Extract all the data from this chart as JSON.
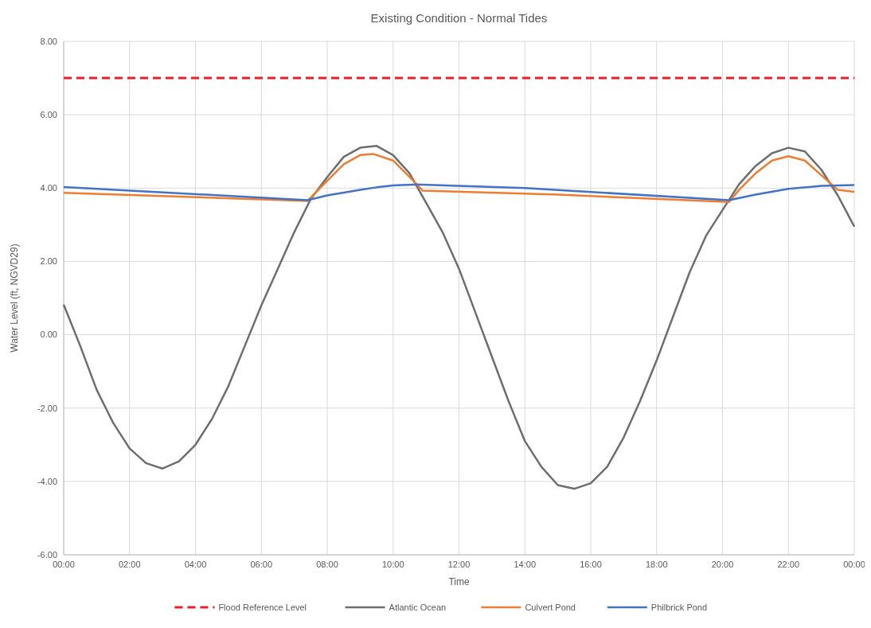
{
  "chart_data": {
    "type": "line",
    "title": "Existing Condition - Normal Tides",
    "xlabel": "Time",
    "ylabel": "Water Level (ft, NGVD29)",
    "xlim": [
      0,
      24
    ],
    "xticks": [
      {
        "value": 0,
        "label": "00:00"
      },
      {
        "value": 2,
        "label": "02:00"
      },
      {
        "value": 4,
        "label": "04:00"
      },
      {
        "value": 6,
        "label": "06:00"
      },
      {
        "value": 8,
        "label": "08:00"
      },
      {
        "value": 10,
        "label": "10:00"
      },
      {
        "value": 12,
        "label": "12:00"
      },
      {
        "value": 14,
        "label": "14:00"
      },
      {
        "value": 16,
        "label": "16:00"
      },
      {
        "value": 18,
        "label": "18:00"
      },
      {
        "value": 20,
        "label": "20:00"
      },
      {
        "value": 22,
        "label": "22:00"
      },
      {
        "value": 24,
        "label": "00:00"
      }
    ],
    "ylim": [
      -6,
      8
    ],
    "yticks": [
      {
        "value": -6,
        "label": "-6.00"
      },
      {
        "value": -4,
        "label": "-4.00"
      },
      {
        "value": -2,
        "label": "-2.00"
      },
      {
        "value": 0,
        "label": "0.00"
      },
      {
        "value": 2,
        "label": "2.00"
      },
      {
        "value": 4,
        "label": "4.00"
      },
      {
        "value": 6,
        "label": "6.00"
      },
      {
        "value": 8,
        "label": "8.00"
      }
    ],
    "grid": true,
    "legend": "bottom",
    "series": [
      {
        "name": "Flood Reference Level",
        "color": "#e8202a",
        "line_style": "dashed",
        "x": [
          0,
          24
        ],
        "values": [
          7,
          7
        ]
      },
      {
        "name": "Atlantic Ocean",
        "color": "#6e6e6e",
        "x": [
          0,
          0.5,
          1,
          1.5,
          2,
          2.5,
          3,
          3.5,
          4,
          4.5,
          5,
          5.5,
          6,
          6.5,
          7,
          7.5,
          8,
          8.5,
          9,
          9.5,
          10,
          10.5,
          11,
          11.5,
          12,
          12.5,
          13,
          13.5,
          14,
          14.5,
          15,
          15.5,
          16,
          16.5,
          17,
          17.5,
          18,
          18.5,
          19,
          19.5,
          20,
          20.5,
          21,
          21.5,
          22,
          22.5,
          23,
          23.5,
          24
        ],
        "values": [
          0.82,
          -0.3,
          -1.5,
          -2.4,
          -3.1,
          -3.5,
          -3.65,
          -3.45,
          -3,
          -2.3,
          -1.4,
          -0.3,
          0.8,
          1.8,
          2.8,
          3.7,
          4.3,
          4.85,
          5.1,
          5.15,
          4.9,
          4.4,
          3.6,
          2.8,
          1.8,
          0.6,
          -0.6,
          -1.8,
          -2.9,
          -3.6,
          -4.1,
          -4.2,
          -4.05,
          -3.6,
          -2.8,
          -1.8,
          -0.7,
          0.5,
          1.7,
          2.7,
          3.4,
          4.1,
          4.6,
          4.95,
          5.1,
          5,
          4.5,
          3.8,
          2.95
        ]
      },
      {
        "name": "Culvert Pond",
        "color": "#ed7d31",
        "x": [
          0,
          7.4,
          8,
          8.5,
          9,
          9.4,
          10,
          10.5,
          10.9,
          15,
          20.2,
          20.5,
          21,
          21.5,
          22,
          22.5,
          23,
          23.5,
          24
        ],
        "values": [
          3.87,
          3.65,
          4.2,
          4.65,
          4.9,
          4.93,
          4.75,
          4.3,
          3.93,
          3.82,
          3.62,
          3.95,
          4.4,
          4.75,
          4.87,
          4.75,
          4.35,
          3.95,
          3.9
        ]
      },
      {
        "name": "Philbrick Pond",
        "color": "#4472c4",
        "x": [
          0,
          7.4,
          8,
          9,
          9.5,
          10,
          10.7,
          14,
          20.2,
          21,
          22,
          23,
          24
        ],
        "values": [
          4.03,
          3.67,
          3.8,
          3.95,
          4.02,
          4.07,
          4.1,
          4,
          3.67,
          3.82,
          3.98,
          4.06,
          4.08
        ]
      }
    ]
  }
}
